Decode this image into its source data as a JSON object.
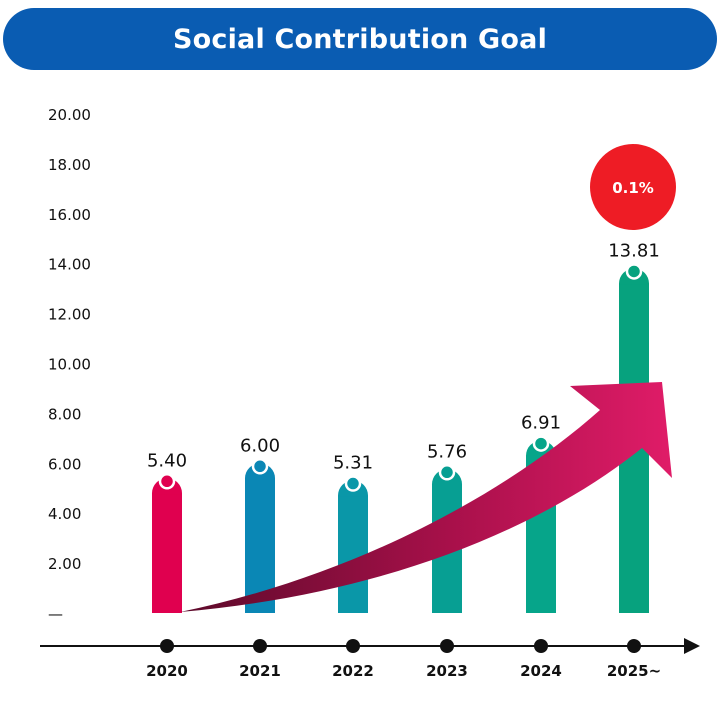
{
  "title": "Social Contribution Goal",
  "badge": {
    "text": "0.1%",
    "color": "#ee1c25"
  },
  "chart_data": {
    "type": "bar",
    "title": "Social Contribution Goal",
    "categories": [
      "2020",
      "2021",
      "2022",
      "2023",
      "2024",
      "2025~"
    ],
    "values": [
      5.4,
      6.0,
      5.31,
      5.76,
      6.91,
      13.81
    ],
    "value_labels": [
      "5.40",
      "6.00",
      "5.31",
      "5.76",
      "6.91",
      "13.81"
    ],
    "colors": [
      "#e0004f",
      "#0a87b5",
      "#0a97a8",
      "#079f93",
      "#06a58a",
      "#07a27e"
    ],
    "ylim": [
      0,
      20
    ],
    "yticks": [
      0,
      2,
      4,
      6,
      8,
      10,
      12,
      14,
      16,
      18,
      20
    ],
    "ytick_labels": [
      "—",
      "2.00",
      "4.00",
      "6.00",
      "8.00",
      "10.00",
      "12.00",
      "14.00",
      "16.00",
      "18.00",
      "20.00"
    ],
    "xlabel": "",
    "ylabel": "",
    "grid": false,
    "trend_arrow": true
  }
}
